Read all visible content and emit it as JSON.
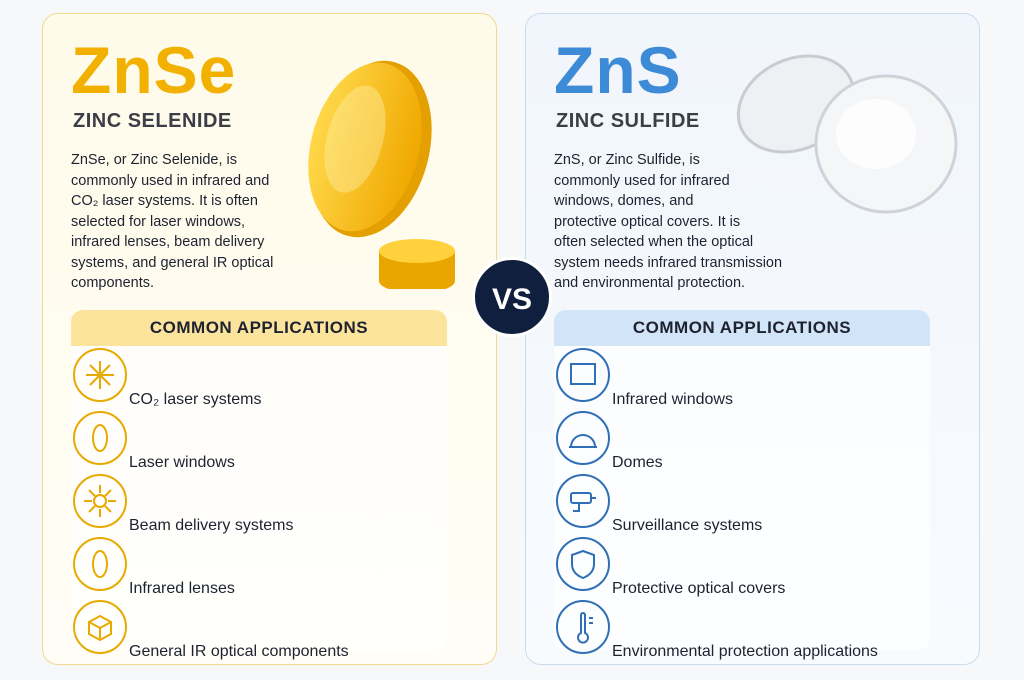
{
  "vs": "VS",
  "panels": [
    {
      "title": "ZnSe",
      "subtitle": "ZINC SELENIDE",
      "description_lines": [
        "ZnSe, or Zinc Selenide, is",
        "commonly used in infrared and",
        "CO₂ laser systems. It is often",
        "selected for laser windows,",
        "infrared lenses, beam delivery",
        "systems, and general IR optical",
        "components."
      ],
      "applications_title": "COMMON APPLICATIONS",
      "applications": [
        "CO₂ laser systems",
        "Laser windows",
        "Beam delivery systems",
        "Infrared lenses",
        "General IR optical components"
      ]
    },
    {
      "title": "ZnS",
      "subtitle": "ZINC SULFIDE",
      "description_lines": [
        "ZnS, or Zinc Sulfide, is",
        "commonly used for infrared",
        "windows, domes, and",
        "protective optical covers. It is",
        "often selected when the optical",
        "system needs infrared transmission",
        "and environmental protection."
      ],
      "applications_title": "COMMON APPLICATIONS",
      "applications": [
        "Infrared windows",
        "Domes",
        "Surveillance systems",
        "Protective optical covers",
        "Environmental protection applications"
      ]
    }
  ]
}
